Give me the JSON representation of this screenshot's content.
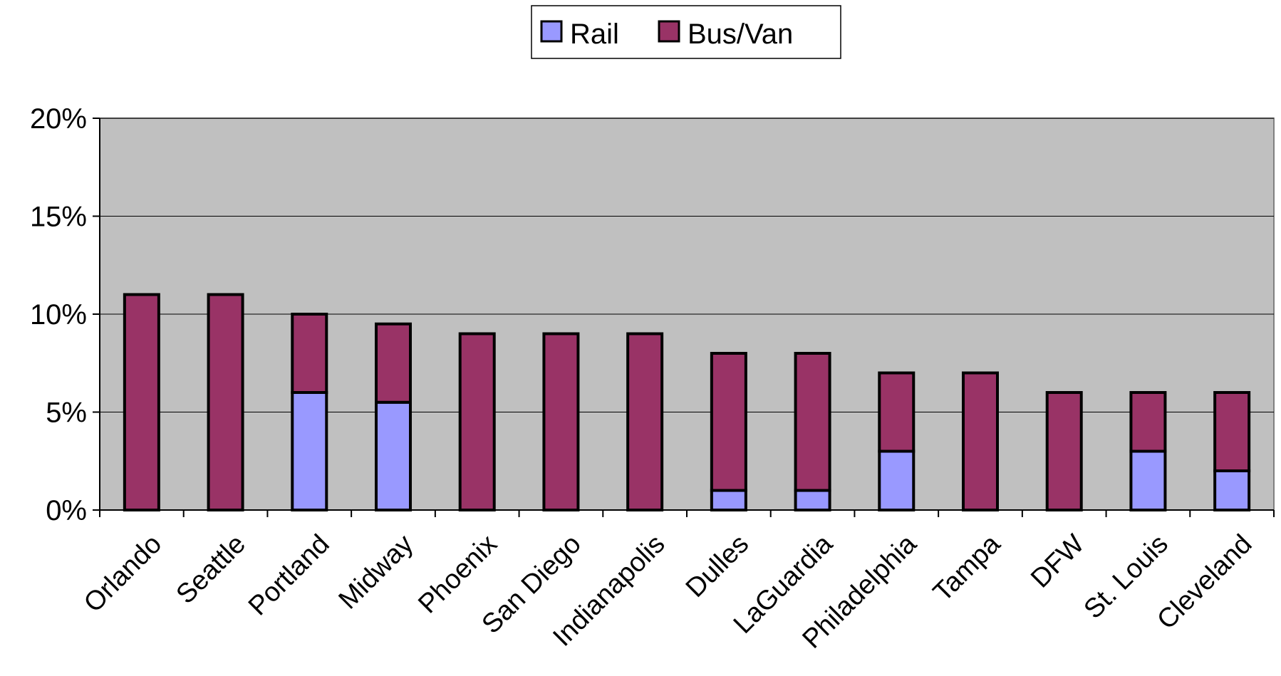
{
  "chart_data": {
    "type": "bar",
    "stacked": true,
    "categories": [
      "Orlando",
      "Seattle",
      "Portland",
      "Midway",
      "Phoenix",
      "San Diego",
      "Indianapolis",
      "Dulles",
      "LaGuardia",
      "Philadelphia",
      "Tampa",
      "DFW",
      "St. Louis",
      "Cleveland"
    ],
    "series": [
      {
        "name": "Rail",
        "color": "#9999ff",
        "values": [
          0,
          0,
          6,
          5.5,
          0,
          0,
          0,
          1,
          1,
          3,
          0,
          0,
          3,
          2
        ]
      },
      {
        "name": "Bus/Van",
        "color": "#993366",
        "values": [
          11,
          11,
          4,
          4,
          9,
          9,
          9,
          7,
          7,
          4,
          7,
          6,
          3,
          4
        ]
      }
    ],
    "ylim": [
      0,
      20
    ],
    "yticks": [
      0,
      5,
      10,
      15,
      20
    ],
    "ytick_labels": [
      "0%",
      "5%",
      "10%",
      "15%",
      "20%"
    ],
    "title": "",
    "xlabel": "",
    "ylabel": "",
    "grid": true,
    "legend_position": "top-center",
    "plot_background": "#c0c0c0"
  }
}
